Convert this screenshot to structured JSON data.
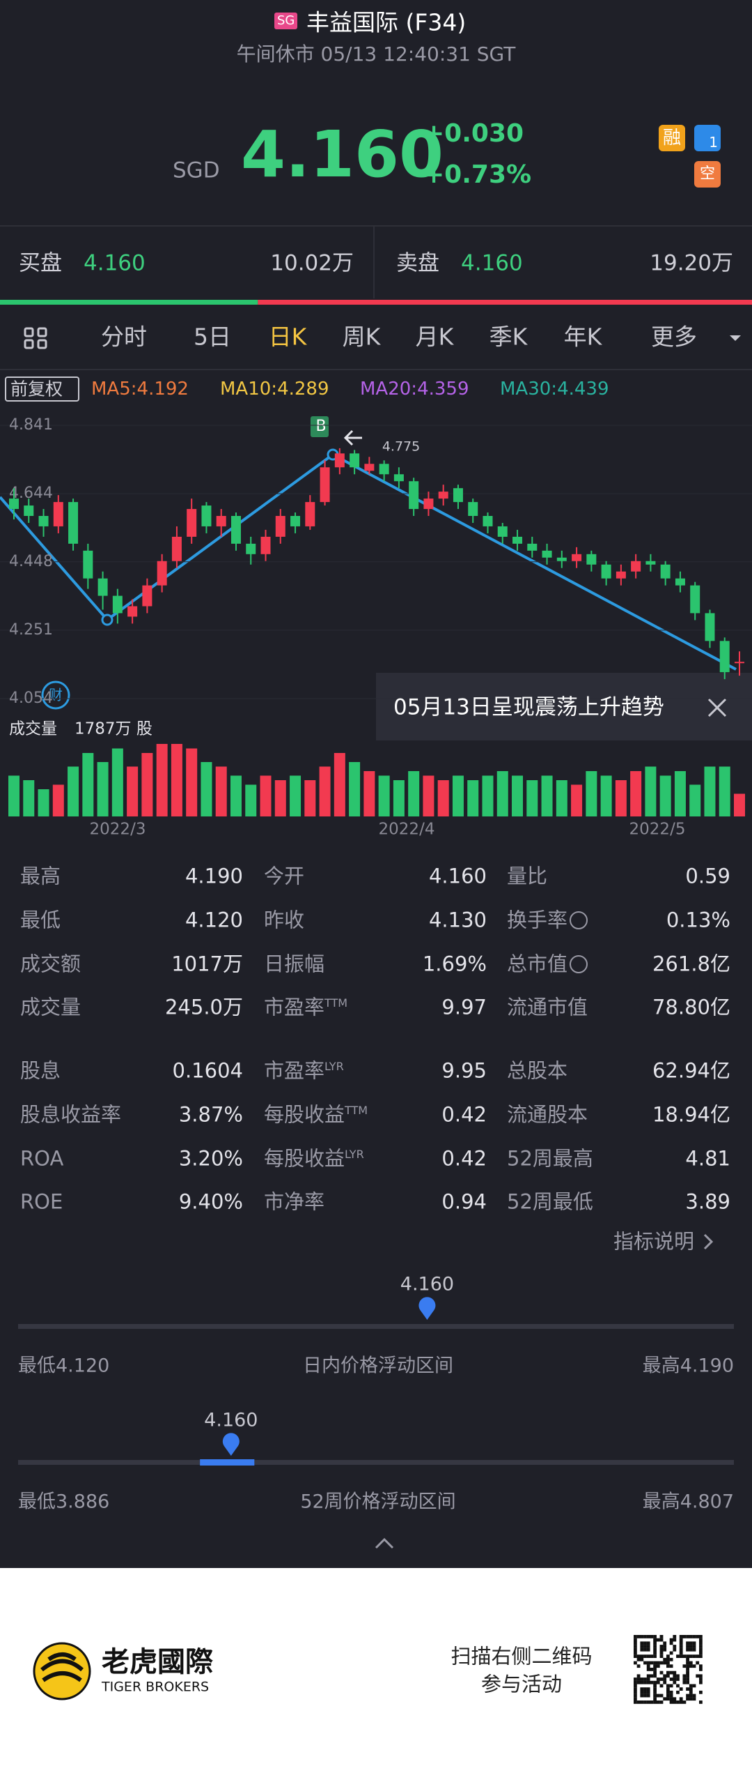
{
  "header": {
    "market_badge": "SG",
    "title": "丰益国际 (F34)",
    "status": "午间休市 05/13 12:40:31 SGT"
  },
  "quote": {
    "currency": "SGD",
    "price": "4.160",
    "change": "+0.030",
    "change_pct": "+0.73%",
    "badges": [
      "融",
      "1",
      "空"
    ]
  },
  "order_book": {
    "bid_label": "买盘",
    "bid_price": "4.160",
    "bid_size": {
      "value": 10.02,
      "label": "10.02万"
    },
    "ask_label": "卖盘",
    "ask_price": "4.160",
    "ask_size": {
      "value": 19.2,
      "label": "19.20万"
    }
  },
  "tabs": [
    "分时",
    "5日",
    "日K",
    "周K",
    "月K",
    "季K",
    "年K",
    "更多"
  ],
  "active_tab": 2,
  "kline": {
    "adjust": "前复权",
    "ma": [
      {
        "label": "MA5:4.192",
        "color": "#f07b3f"
      },
      {
        "label": "MA10:4.289",
        "color": "#f2c744"
      },
      {
        "label": "MA20:4.359",
        "color": "#b563e8"
      },
      {
        "label": "MA30:4.439",
        "color": "#2ab3a0"
      }
    ],
    "ylim": [
      4.054,
      4.841
    ],
    "yticks": [
      4.054,
      4.251,
      4.448,
      4.644,
      4.841
    ],
    "up_color": "#f23a50",
    "down_color": "#2bc46e",
    "open": [
      4.63,
      4.61,
      4.58,
      4.55,
      4.62,
      4.48,
      4.4,
      4.35,
      4.29,
      4.32,
      4.38,
      4.45,
      4.52,
      4.61,
      4.55,
      4.58,
      4.5,
      4.47,
      4.52,
      4.58,
      4.55,
      4.62,
      4.72,
      4.76,
      4.71,
      4.73,
      4.7,
      4.68,
      4.6,
      4.63,
      4.66,
      4.62,
      4.58,
      4.55,
      4.52,
      4.5,
      4.48,
      4.46,
      4.45,
      4.47,
      4.44,
      4.4,
      4.42,
      4.45,
      4.44,
      4.4,
      4.38,
      4.3,
      4.22,
      4.16
    ],
    "close": [
      4.6,
      4.58,
      4.55,
      4.62,
      4.5,
      4.4,
      4.35,
      4.3,
      4.32,
      4.38,
      4.45,
      4.52,
      4.6,
      4.55,
      4.58,
      4.5,
      4.47,
      4.52,
      4.58,
      4.55,
      4.62,
      4.72,
      4.76,
      4.72,
      4.73,
      4.7,
      4.68,
      4.6,
      4.63,
      4.65,
      4.62,
      4.58,
      4.55,
      4.52,
      4.5,
      4.48,
      4.46,
      4.45,
      4.47,
      4.44,
      4.4,
      4.42,
      4.45,
      4.44,
      4.4,
      4.38,
      4.3,
      4.22,
      4.13,
      4.16
    ],
    "high": [
      4.66,
      4.63,
      4.6,
      4.64,
      4.63,
      4.5,
      4.42,
      4.37,
      4.34,
      4.4,
      4.47,
      4.55,
      4.63,
      4.62,
      4.6,
      4.59,
      4.52,
      4.54,
      4.6,
      4.59,
      4.64,
      4.74,
      4.775,
      4.77,
      4.75,
      4.74,
      4.72,
      4.69,
      4.65,
      4.67,
      4.67,
      4.63,
      4.59,
      4.56,
      4.54,
      4.52,
      4.5,
      4.48,
      4.49,
      4.48,
      4.45,
      4.44,
      4.47,
      4.47,
      4.45,
      4.42,
      4.39,
      4.31,
      4.23,
      4.19
    ],
    "low": [
      4.57,
      4.56,
      4.52,
      4.53,
      4.48,
      4.37,
      4.31,
      4.27,
      4.27,
      4.3,
      4.36,
      4.43,
      4.5,
      4.53,
      4.52,
      4.48,
      4.44,
      4.45,
      4.5,
      4.53,
      4.54,
      4.61,
      4.7,
      4.7,
      4.7,
      4.68,
      4.66,
      4.58,
      4.58,
      4.61,
      4.6,
      4.56,
      4.53,
      4.5,
      4.48,
      4.46,
      4.44,
      4.43,
      4.43,
      4.42,
      4.38,
      4.38,
      4.4,
      4.42,
      4.38,
      4.36,
      4.28,
      4.2,
      4.11,
      4.12
    ],
    "signal": "B",
    "peak_label": {
      "value": 4.775,
      "label": "4.775"
    },
    "badge": "财",
    "volume_label": "成交量",
    "volume_total": "1787万 股",
    "volumes": [
      45,
      40,
      30,
      35,
      55,
      70,
      60,
      75,
      55,
      70,
      80,
      80,
      75,
      60,
      55,
      45,
      35,
      45,
      40,
      45,
      40,
      55,
      70,
      60,
      50,
      45,
      40,
      50,
      45,
      40,
      45,
      40,
      45,
      50,
      45,
      40,
      45,
      40,
      35,
      50,
      45,
      40,
      50,
      55,
      45,
      50,
      35,
      55,
      55,
      25
    ],
    "months": [
      "2022/3",
      "2022/4",
      "2022/5"
    ]
  },
  "tooltip": "05月13日呈现震荡上升趋势",
  "stats": [
    [
      {
        "label": "最高",
        "value": "4.190"
      },
      {
        "label": "今开",
        "value": "4.160"
      },
      {
        "label": "量比",
        "value": "0.59"
      }
    ],
    [
      {
        "label": "最低",
        "value": "4.120"
      },
      {
        "label": "昨收",
        "value": "4.130"
      },
      {
        "label": "换手率",
        "info": true,
        "value": "0.13%"
      }
    ],
    [
      {
        "label": "成交额",
        "value": "1017万"
      },
      {
        "label": "日振幅",
        "value": "1.69%"
      },
      {
        "label": "总市值",
        "info": true,
        "value": "261.8亿"
      }
    ],
    [
      {
        "label": "成交量",
        "value": "245.0万"
      },
      {
        "label": "市盈率",
        "sup": "TTM",
        "value": "9.97"
      },
      {
        "label": "流通市值",
        "value": "78.80亿"
      }
    ],
    [
      {
        "label": "股息",
        "value": "0.1604"
      },
      {
        "label": "市盈率",
        "sup": "LYR",
        "value": "9.95"
      },
      {
        "label": "总股本",
        "value": "62.94亿"
      }
    ],
    [
      {
        "label": "股息收益率",
        "value": "3.87%"
      },
      {
        "label": "每股收益",
        "sup": "TTM",
        "value": "0.42"
      },
      {
        "label": "流通股本",
        "value": "18.94亿"
      }
    ],
    [
      {
        "label": "ROA",
        "value": "3.20%"
      },
      {
        "label": "每股收益",
        "sup": "LYR",
        "value": "0.42"
      },
      {
        "label": "52周最高",
        "value": "4.81"
      }
    ],
    [
      {
        "label": "ROE",
        "value": "9.40%"
      },
      {
        "label": "市净率",
        "value": "0.94"
      },
      {
        "label": "52周最低",
        "value": "3.89"
      }
    ]
  ],
  "indicator_link": "指标说明",
  "ranges": [
    {
      "title": "日内价格浮动区间",
      "low": {
        "value": 4.12,
        "label": "最低4.120"
      },
      "high": {
        "value": 4.19,
        "label": "最高4.190"
      },
      "current": {
        "value": 4.16,
        "label": "4.160"
      }
    },
    {
      "title": "52周价格浮动区间",
      "low": {
        "value": 3.886,
        "label": "最低3.886"
      },
      "high": {
        "value": 4.807,
        "label": "最高4.807"
      },
      "current": {
        "value": 4.16,
        "label": "4.160"
      },
      "segment": [
        4.12,
        4.19
      ]
    }
  ],
  "footer": {
    "brand_cn": "老虎國際",
    "brand_en": "TIGER BROKERS",
    "promo": [
      "扫描右侧二维码",
      "参与活动"
    ]
  }
}
